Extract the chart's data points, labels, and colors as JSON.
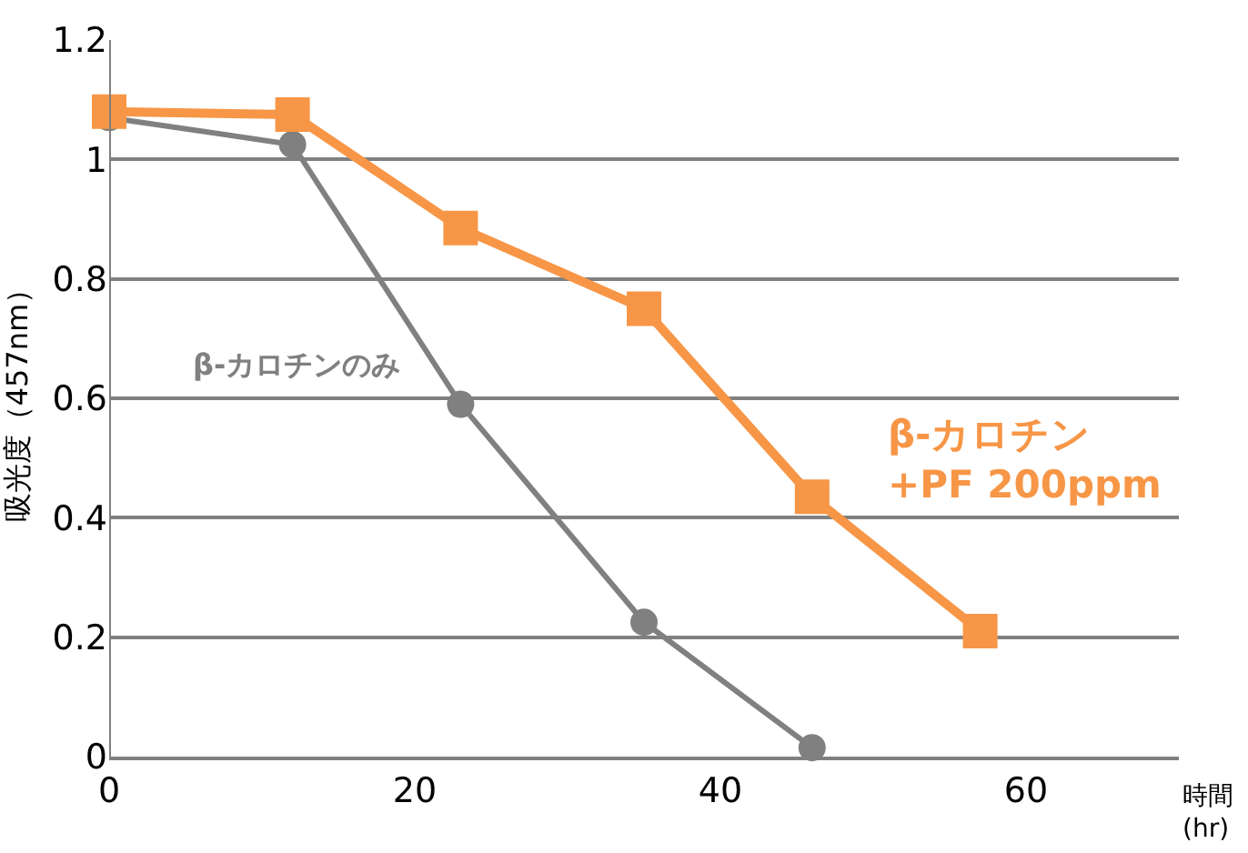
{
  "chart_data": {
    "type": "line",
    "ylabel": "吸光度（457nm）",
    "xlabel": "時間\n(hr)",
    "xlim": [
      0,
      70
    ],
    "xticks": [
      0,
      20,
      40,
      60
    ],
    "ylim": [
      0,
      1.2
    ],
    "yticks": [
      0,
      0.2,
      0.4,
      0.6,
      0.8,
      1,
      1.2
    ],
    "grid": "y",
    "legend": false,
    "series": [
      {
        "name": "β-カロチンのみ",
        "color": "#808080",
        "marker": "circle",
        "x": [
          0,
          12,
          23,
          35,
          46
        ],
        "values": [
          1.07,
          1.025,
          0.59,
          0.225,
          0.015
        ]
      },
      {
        "name": "β-カロチン\n+PF 200ppm",
        "color": "#f79646",
        "marker": "square",
        "x": [
          0,
          12,
          23,
          35,
          46,
          57
        ],
        "values": [
          1.08,
          1.075,
          0.885,
          0.75,
          0.435,
          0.21
        ]
      }
    ]
  }
}
